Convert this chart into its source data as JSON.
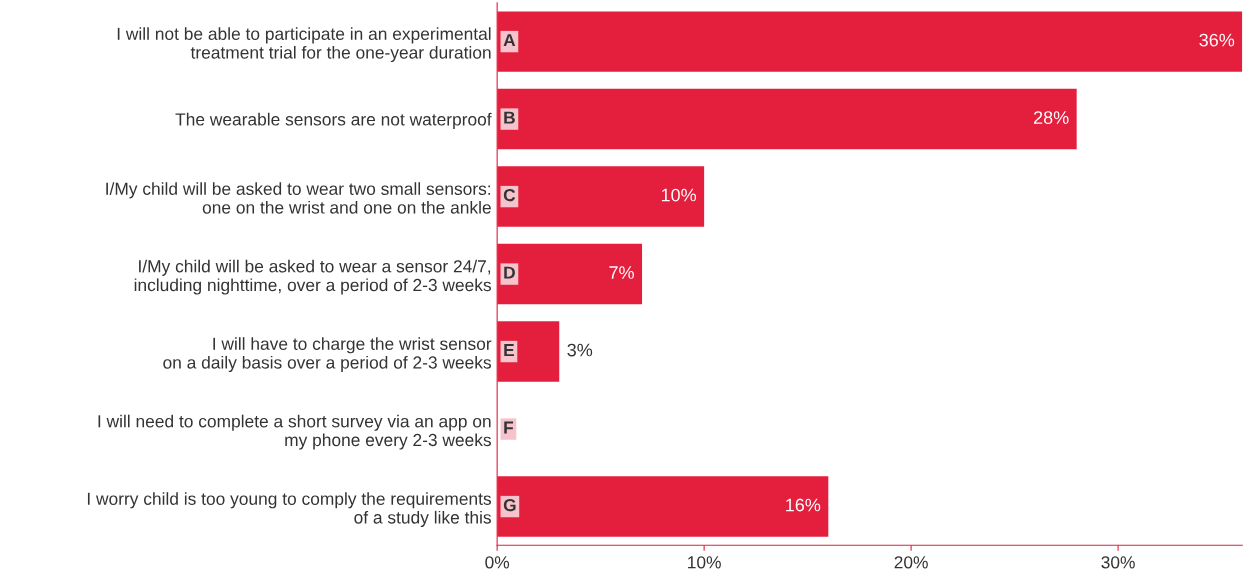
{
  "chart_data": {
    "type": "bar",
    "orientation": "horizontal",
    "categories": [
      "I will not be able to participate in an experimental\ntreatment trial for the one-year duration",
      "The wearable sensors are not waterproof",
      "I/My child will be asked to wear two small sensors:\none on the wrist and one on the ankle",
      "I/My child will be asked to wear a sensor 24/7,\nincluding nighttime, over a period of 2-3 weeks",
      "I will have to charge the wrist sensor\non a daily basis over a period of 2-3 weeks",
      "I will need to complete a short survey via an app on\nmy phone every 2-3 weeks",
      "I worry child is too young to comply the requirements\nof a study like this"
    ],
    "values": [
      36,
      28,
      10,
      7,
      3,
      0,
      16
    ],
    "value_labels": [
      "36%",
      "28%",
      "10%",
      "7%",
      "3%",
      null,
      "16%"
    ],
    "color": "#e41f3d",
    "xlim": [
      0,
      36
    ],
    "xticks": [
      {
        "value": 0,
        "label": "0%"
      },
      {
        "value": 10,
        "label": "10%"
      },
      {
        "value": 20,
        "label": "20%"
      },
      {
        "value": 30,
        "label": "30%"
      }
    ],
    "annotations": [
      "A",
      "B",
      "C",
      "D",
      "E",
      "F",
      "G"
    ],
    "grid": false,
    "legend": false
  }
}
